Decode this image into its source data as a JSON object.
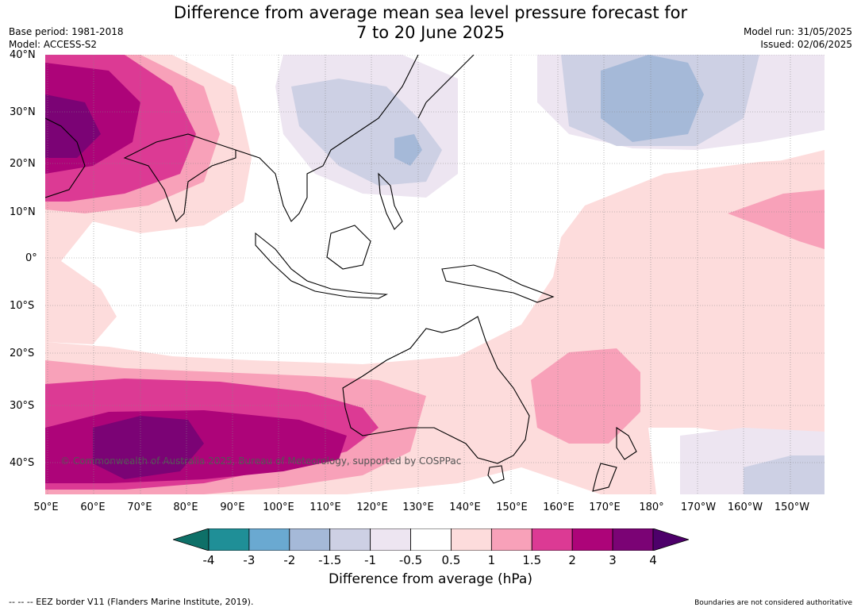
{
  "title": {
    "line1": "Difference from average mean sea level pressure forecast for",
    "line2": "7 to 20 June 2025"
  },
  "meta_left": {
    "base_period": "Base period: 1981-2018",
    "model": "Model: ACCESS-S2"
  },
  "meta_right": {
    "model_run": "Model run: 31/05/2025",
    "issued": "Issued: 02/06/2025"
  },
  "map": {
    "lat_labels": [
      "40°N",
      "30°N",
      "20°N",
      "10°N",
      "0°",
      "10°S",
      "20°S",
      "30°S",
      "40°S"
    ],
    "lon_labels": [
      "50°E",
      "60°E",
      "70°E",
      "80°E",
      "90°E",
      "100°E",
      "110°E",
      "120°E",
      "130°E",
      "140°E",
      "150°E",
      "160°E",
      "170°E",
      "180°",
      "170°W",
      "160°W",
      "150°W"
    ],
    "copyright": "© Commonwealth of Australia 2025, Bureau of Meteorology, supported by COSPPac"
  },
  "colorbar": {
    "tick_labels": [
      "-4",
      "-3",
      "-2",
      "-1.5",
      "-1",
      "-0.5",
      "0.5",
      "1",
      "1.5",
      "2",
      "3",
      "4"
    ],
    "colors": [
      "#0e7068",
      "#1f8f97",
      "#6aa9d1",
      "#a5b9d8",
      "#cdd0e4",
      "#ede5f1",
      "#ffffff",
      "#fddcdc",
      "#f8a1b9",
      "#dc3a94",
      "#ad0479",
      "#7b0375",
      "#4d006a"
    ],
    "title": "Difference from average (hPa)"
  },
  "footer": {
    "left": "--  --  -- EEZ border V11 (Flanders Marine Institute, 2019).",
    "right": "Boundaries are not considered authoritative"
  }
}
